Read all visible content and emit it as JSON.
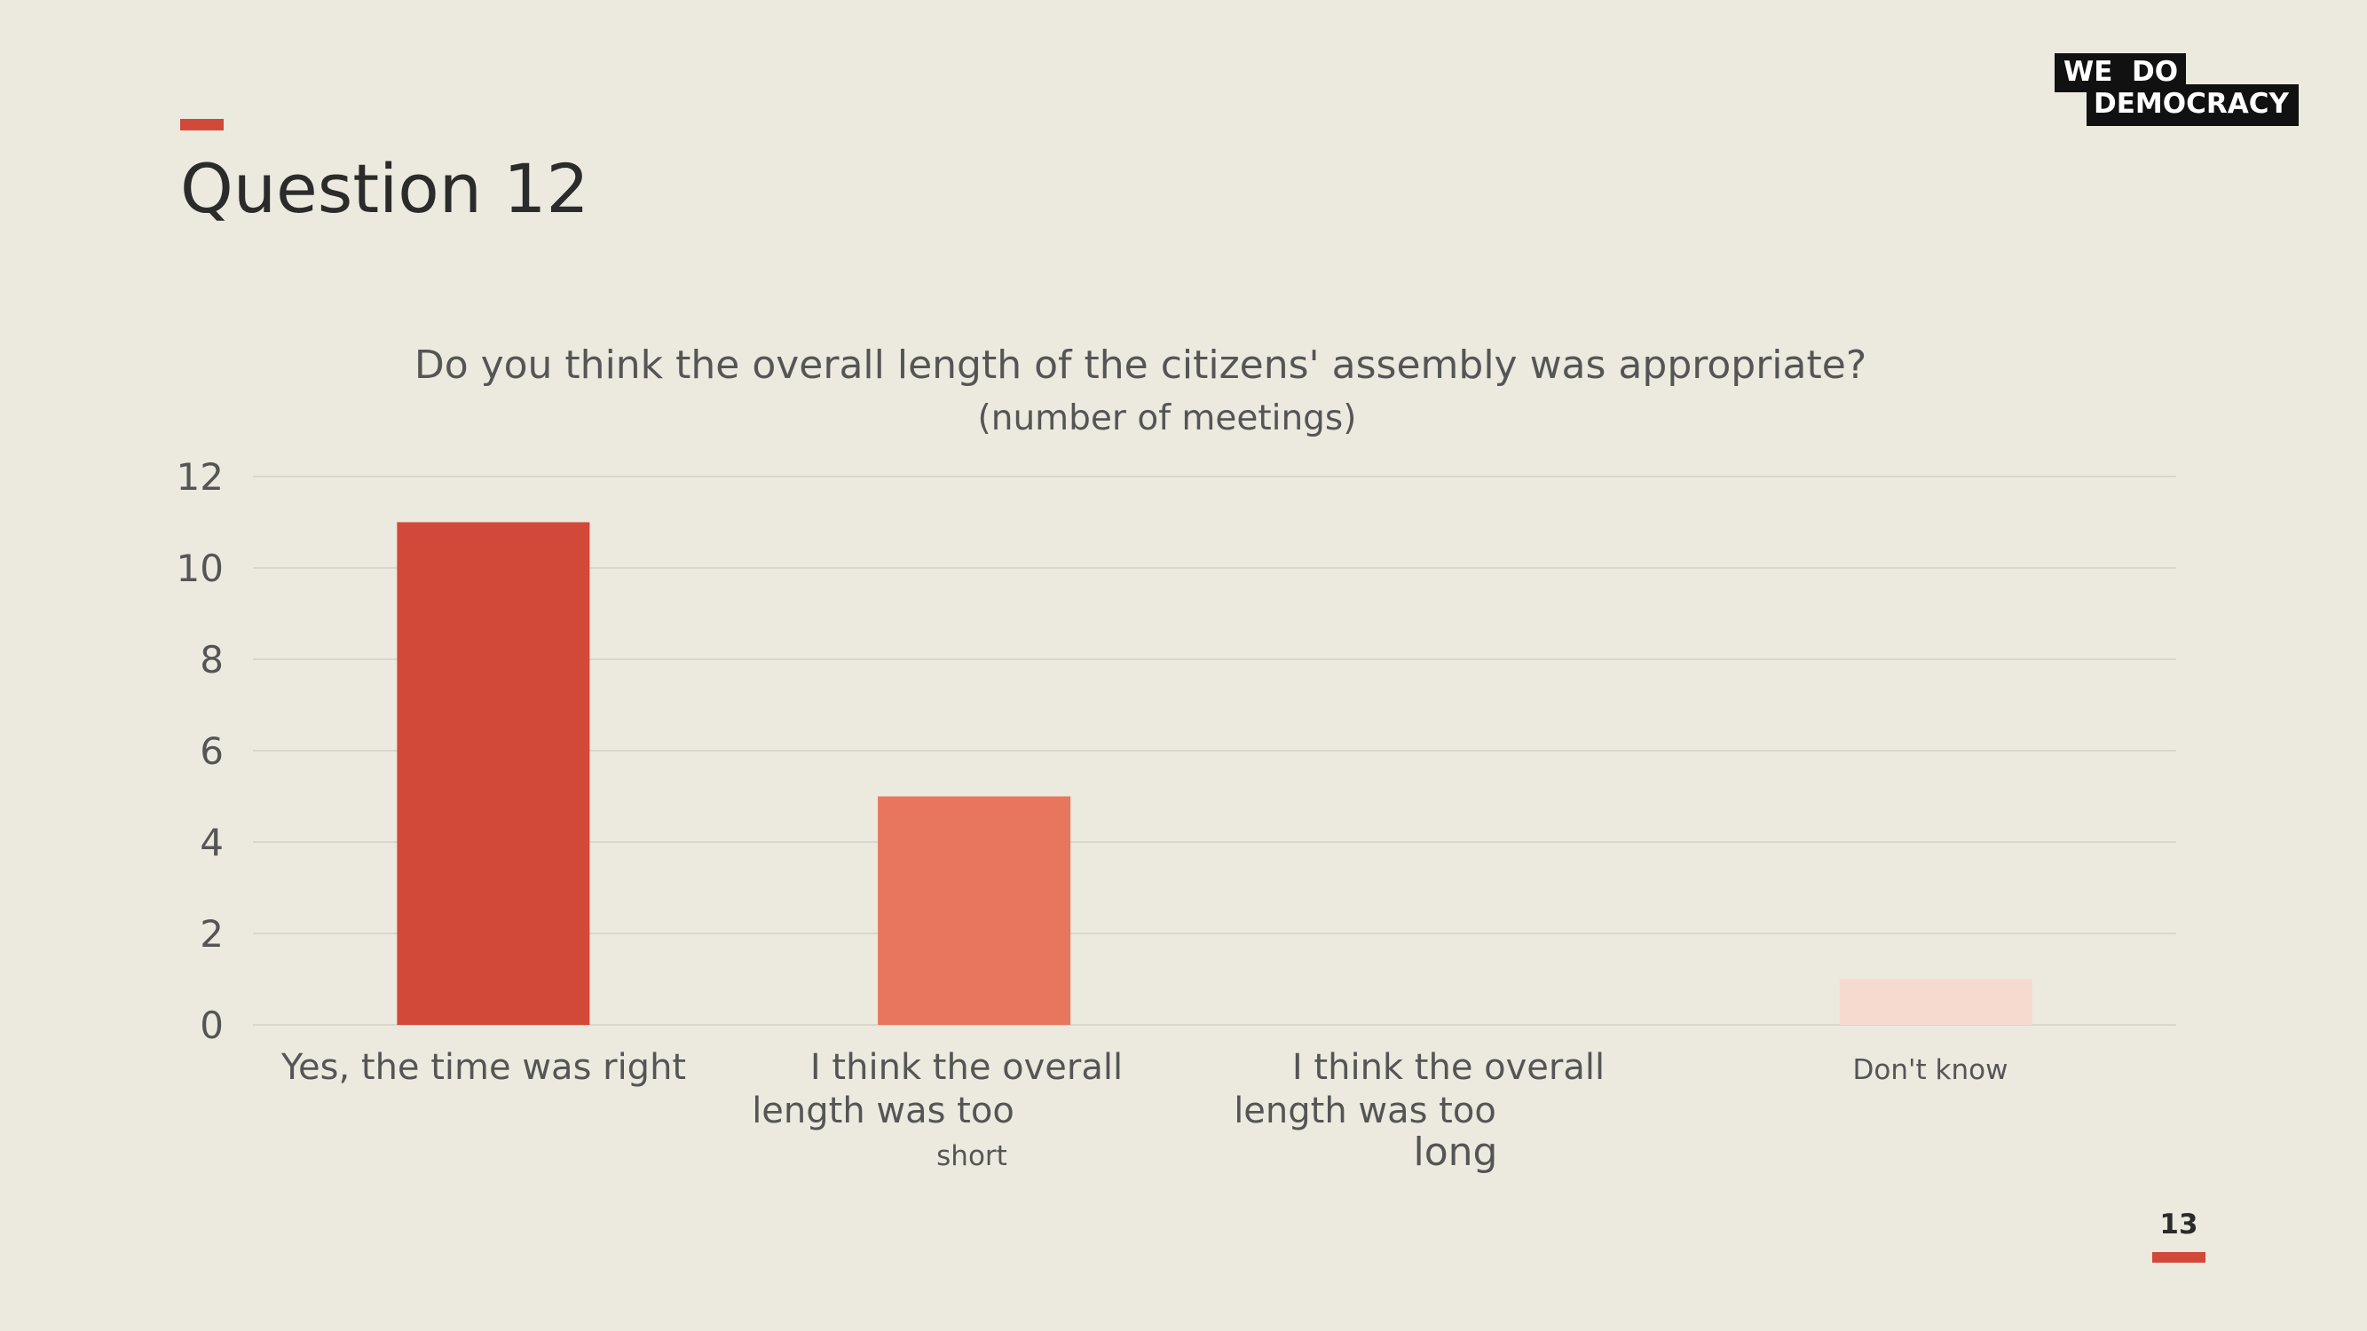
{
  "slide": {
    "title": "Question 12",
    "page_number": "13"
  },
  "logo": {
    "line1": "WE  DO",
    "line2": "DEMOCRACY"
  },
  "colors": {
    "background": "#ECE9DF",
    "accent": "#D2493A",
    "text": "#2B2B2B",
    "axis_text": "#555555",
    "grid": "#D9D6CD"
  },
  "chart_data": {
    "type": "bar",
    "title": "Do you think the overall length of the citizens' assembly was appropriate?",
    "subtitle": "(number of meetings)",
    "categories": [
      [
        "Yes, the time was right"
      ],
      [
        "I think the overall",
        "length was too",
        "short"
      ],
      [
        "I think the overall",
        "length was too",
        "long"
      ],
      [
        "Don't know"
      ]
    ],
    "values": [
      11,
      5,
      0,
      1
    ],
    "bar_colors": [
      "#D2493A",
      "#E8765C",
      "#E8765C",
      "#F6DACF"
    ],
    "yticks": [
      "0",
      "2",
      "4",
      "6",
      "8",
      "10",
      "12"
    ],
    "ylim": [
      0,
      12
    ],
    "grid": true,
    "legend": "none"
  }
}
